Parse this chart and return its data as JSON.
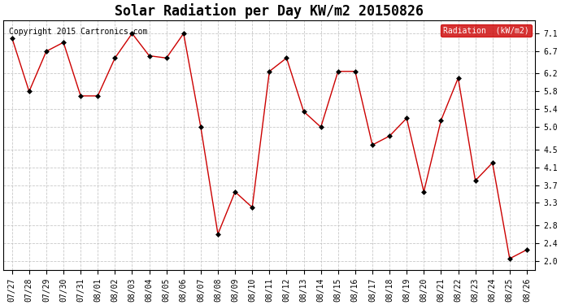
{
  "title": "Solar Radiation per Day KW/m2 20150826",
  "copyright": "Copyright 2015 Cartronics.com",
  "legend_label": "Radiation  (kW/m2)",
  "dates": [
    "07/27",
    "07/28",
    "07/29",
    "07/30",
    "07/31",
    "08/01",
    "08/02",
    "08/03",
    "08/04",
    "08/05",
    "08/06",
    "08/07",
    "08/08",
    "08/09",
    "08/10",
    "08/11",
    "08/12",
    "08/13",
    "08/14",
    "08/15",
    "08/16",
    "08/17",
    "08/18",
    "08/19",
    "08/20",
    "08/21",
    "08/22",
    "08/23",
    "08/24",
    "08/25",
    "08/26"
  ],
  "values": [
    7.0,
    5.8,
    6.7,
    6.9,
    5.7,
    5.7,
    6.55,
    7.1,
    6.6,
    6.55,
    7.1,
    5.0,
    2.6,
    3.55,
    3.2,
    6.25,
    6.55,
    5.35,
    5.0,
    6.25,
    6.25,
    4.6,
    4.8,
    5.2,
    3.55,
    5.15,
    6.1,
    3.8,
    4.2,
    2.05,
    2.25
  ],
  "line_color": "#cc0000",
  "marker": "D",
  "marker_size": 3,
  "marker_color": "black",
  "ylim": [
    1.8,
    7.4
  ],
  "yticks": [
    2.0,
    2.4,
    2.8,
    3.3,
    3.7,
    4.1,
    4.5,
    5.0,
    5.4,
    5.8,
    6.2,
    6.7,
    7.1
  ],
  "background_color": "#ffffff",
  "plot_bg_color": "#ffffff",
  "grid_color": "#bbbbbb",
  "title_fontsize": 12,
  "copyright_fontsize": 7,
  "tick_fontsize": 7,
  "legend_bg": "#cc0000",
  "legend_text_color": "#ffffff",
  "fig_width": 6.9,
  "fig_height": 3.75
}
